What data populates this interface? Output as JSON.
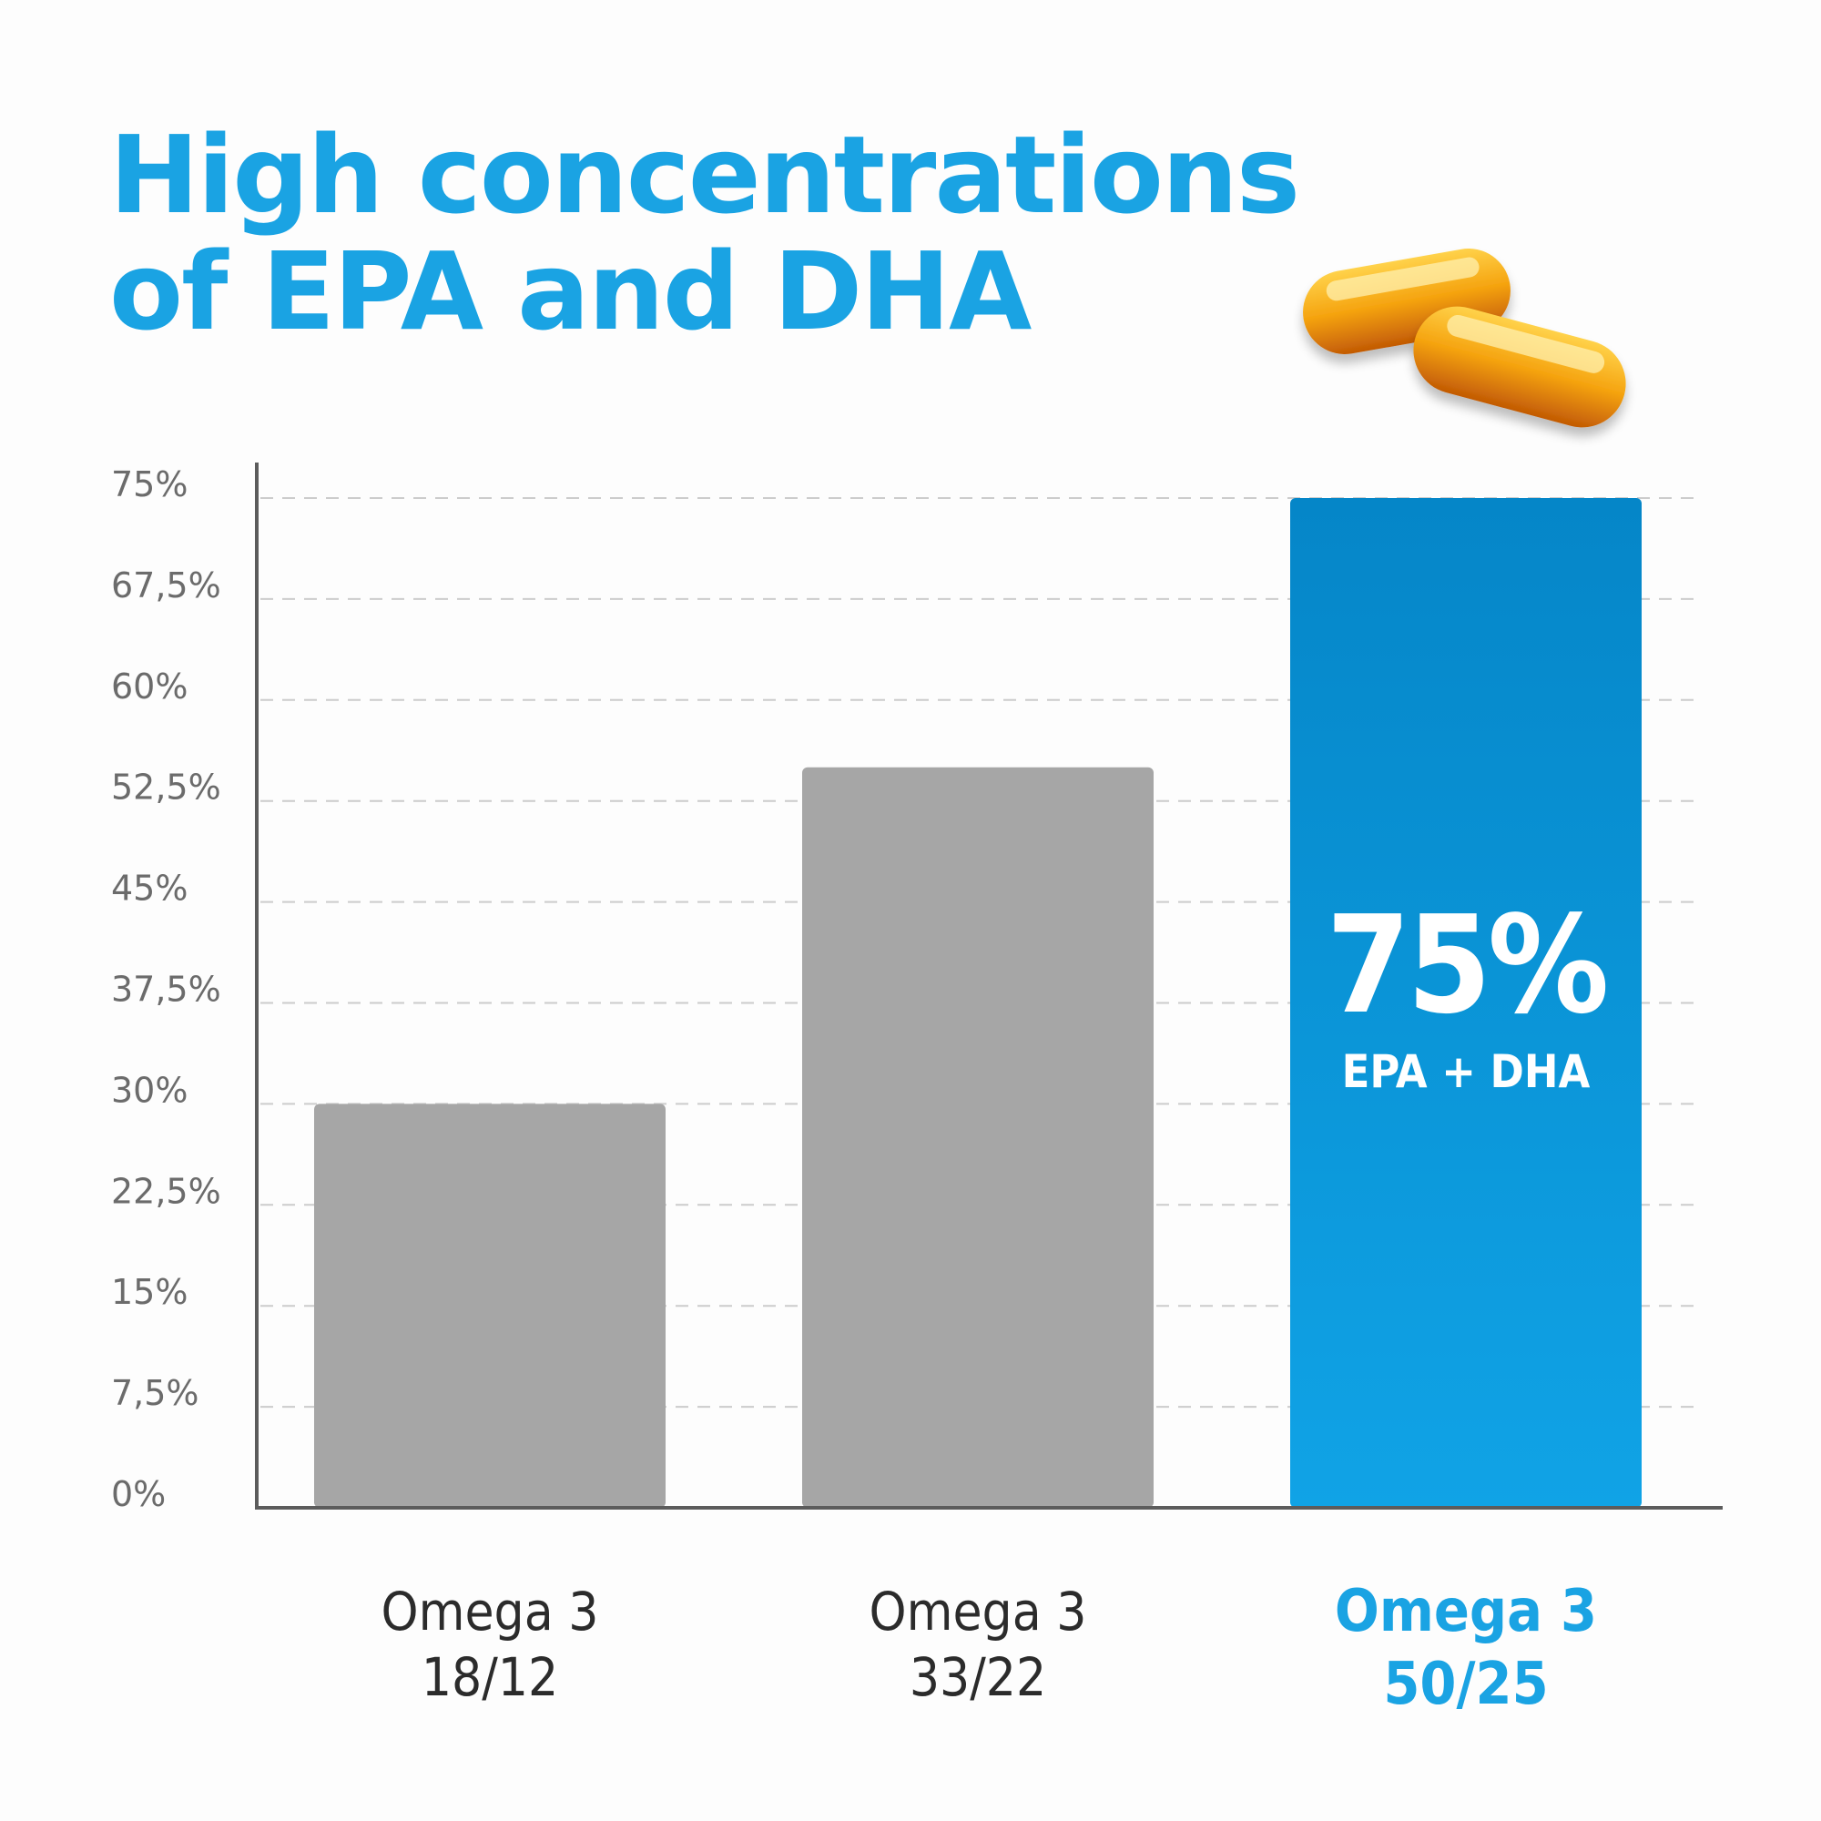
{
  "title": {
    "line1": "High concentrations",
    "line2": "of EPA and DHA"
  },
  "decoration": {
    "icon": "omega-capsules-icon"
  },
  "colors": {
    "accent": "#1aa3e3",
    "bar_gray": "#a6a6a6",
    "bar_blue_top": "#0586c8",
    "bar_blue_bottom": "#10a3e6",
    "axis": "#5c5c5c",
    "grid": "#cccccc",
    "tick_text": "#6b6b6b"
  },
  "chart_data": {
    "type": "bar",
    "title": "High concentrations of EPA and DHA",
    "categories": [
      {
        "line1": "Omega 3",
        "line2": "18/12",
        "highlight": false
      },
      {
        "line1": "Omega 3",
        "line2": "33/22",
        "highlight": false
      },
      {
        "line1": "Omega 3",
        "line2": "50/25",
        "highlight": true
      }
    ],
    "values": [
      30,
      55,
      75
    ],
    "ylim": [
      0,
      75
    ],
    "yticks": [
      0,
      7.5,
      15,
      22.5,
      30,
      37.5,
      45,
      52.5,
      60,
      67.5,
      75
    ],
    "ytick_labels": [
      "0%",
      "7,5%",
      "15%",
      "22,5%",
      "30%",
      "37,5%",
      "45%",
      "52,5%",
      "60%",
      "67,5%",
      "75%"
    ],
    "grid": true,
    "xlabel": "",
    "ylabel": "",
    "annotation": {
      "value_label": "75%",
      "sub_label": "EPA + DHA",
      "category_index": 2
    }
  }
}
